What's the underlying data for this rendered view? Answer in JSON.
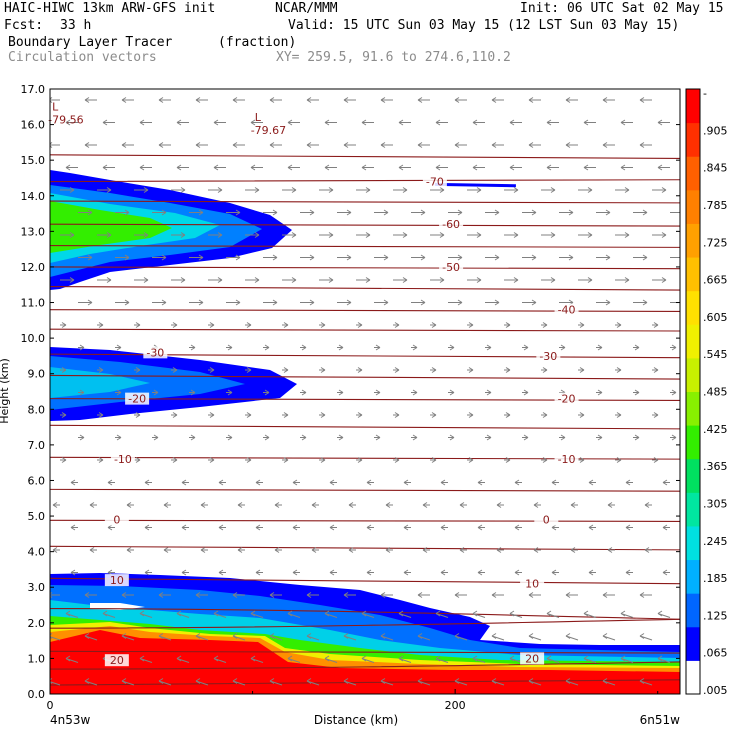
{
  "header": {
    "model": "HAIC-HIWC 13km ARW-GFS init",
    "org": "NCAR/MMM",
    "init": "Init: 06 UTC Sat 02 May 15",
    "fcst_label": "Fcst:",
    "fcst_value": "33 h",
    "valid": "Valid: 15 UTC Sun 03 May 15 (12 LST Sun 03 May 15)",
    "field": "Boundary Layer Tracer",
    "units": "(fraction)",
    "vectors": "Circulation vectors",
    "xsect": "XY= 259.5, 91.6 to 274.6,110.2"
  },
  "colors": {
    "contour": "#8b1a1a",
    "vector": "#808080",
    "scale": [
      "#ffffff",
      "#0000ff",
      "#0066ff",
      "#00b0ff",
      "#00e0e0",
      "#00e6a0",
      "#00e060",
      "#33ee00",
      "#88f000",
      "#c8f000",
      "#f0f000",
      "#ffe000",
      "#ffc000",
      "#ffa000",
      "#ff8000",
      "#ff6000",
      "#ff3000",
      "#ff0000"
    ]
  },
  "chart_data": {
    "type": "contour-cross-section",
    "xlabel": "Distance (km)",
    "ylabel": "Height (km)",
    "xlim": [
      0,
      311
    ],
    "ylim": [
      0,
      17
    ],
    "x_ticks": [
      {
        "v": 0,
        "label": "0"
      },
      {
        "v": 200,
        "label": "200"
      }
    ],
    "x_endpoints": {
      "left": "4n53w",
      "right": "6n51w"
    },
    "y_ticks": [
      "0.0",
      "1.0",
      "2.0",
      "3.0",
      "4.0",
      "5.0",
      "6.0",
      "7.0",
      "8.0",
      "9.0",
      "10.0",
      "11.0",
      "12.0",
      "13.0",
      "14.0",
      "15.0",
      "16.0",
      "17.0"
    ],
    "colorbar_labels": [
      "-",
      ".905",
      ".845",
      ".785",
      ".725",
      ".665",
      ".605",
      ".545",
      ".485",
      ".425",
      ".365",
      ".305",
      ".245",
      ".185",
      ".125",
      ".065",
      ".005"
    ],
    "temperature_isotherms": [
      {
        "label": "-70",
        "x": 190,
        "y": 14.4
      },
      {
        "label": "-60",
        "x": 198,
        "y": 13.2
      },
      {
        "label": "-50",
        "x": 198,
        "y": 12.0
      },
      {
        "label": "-40",
        "x": 255,
        "y": 10.8
      },
      {
        "label": "-30",
        "x": 52,
        "y": 9.6
      },
      {
        "label": "-30",
        "x": 246,
        "y": 9.5
      },
      {
        "label": "-20",
        "x": 43,
        "y": 8.3
      },
      {
        "label": "-20",
        "x": 255,
        "y": 8.3
      },
      {
        "label": "-10",
        "x": 36,
        "y": 6.6
      },
      {
        "label": "-10",
        "x": 255,
        "y": 6.6
      },
      {
        "label": "0",
        "x": 33,
        "y": 4.9
      },
      {
        "label": "0",
        "x": 245,
        "y": 4.9
      },
      {
        "label": "10",
        "x": 33,
        "y": 3.2
      },
      {
        "label": "10",
        "x": 238,
        "y": 3.1
      },
      {
        "label": "20",
        "x": 33,
        "y": 0.95
      },
      {
        "label": "20",
        "x": 238,
        "y": 1.0
      }
    ],
    "lows": [
      {
        "mark": "L",
        "value": "-79.56",
        "x": 5,
        "y": 16.2
      },
      {
        "mark": "L",
        "value": "-79.67",
        "x": 105,
        "y": 15.9
      }
    ]
  }
}
